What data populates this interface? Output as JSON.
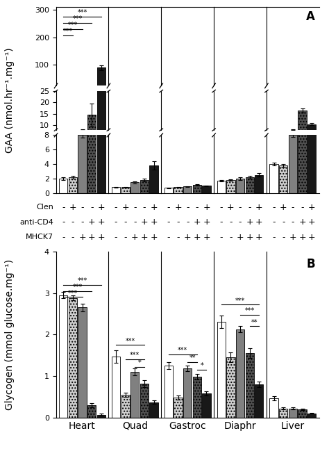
{
  "chart_data": [
    {
      "type": "bar",
      "panel_label": "A",
      "y_label": "GAA (nmol.hr⁻¹.mg⁻¹)",
      "categories": [
        "Heart",
        "Quad",
        "Gastroc",
        "Diaphr",
        "Liver"
      ],
      "tick_labels": "y",
      "segments": [
        {
          "ylim": [
            0,
            8
          ],
          "yticks": [
            0,
            2,
            4,
            6,
            8
          ]
        },
        {
          "ylim": [
            8,
            25
          ],
          "yticks": [
            10,
            15,
            20,
            25
          ]
        },
        {
          "ylim": [
            25,
            310
          ],
          "yticks": [
            100,
            200,
            300
          ]
        }
      ],
      "series": [
        {
          "color": "white",
          "values": [
            2.0,
            0.8,
            0.7,
            1.7,
            4.0
          ],
          "errors": [
            0.15,
            0.08,
            0.05,
            0.12,
            0.2
          ]
        },
        {
          "color": "#d0d0d0",
          "values": [
            2.2,
            0.8,
            0.8,
            1.8,
            3.8
          ],
          "errors": [
            0.2,
            0.08,
            0.05,
            0.12,
            0.2
          ]
        },
        {
          "color": "#808080",
          "values": [
            8.0,
            1.5,
            0.9,
            2.0,
            8.0
          ],
          "errors": [
            0.3,
            0.15,
            0.07,
            0.15,
            0.25
          ]
        },
        {
          "color": "#505050",
          "values": [
            14.5,
            1.8,
            1.1,
            2.2,
            16.5
          ],
          "errors": [
            5.0,
            0.2,
            0.1,
            0.2,
            1.0
          ]
        },
        {
          "color": "#181818",
          "values": [
            90.0,
            3.8,
            1.0,
            2.5,
            10.5
          ],
          "errors": [
            8.0,
            0.6,
            0.07,
            0.25,
            0.6
          ]
        }
      ],
      "annotations": [
        {
          "category": "Heart",
          "from": 0,
          "to": 4,
          "y": 275,
          "text": "***"
        },
        {
          "category": "Heart",
          "from": 0,
          "to": 3,
          "y": 252,
          "text": "***"
        },
        {
          "category": "Heart",
          "from": 0,
          "to": 2,
          "y": 229,
          "text": "***"
        },
        {
          "category": "Heart",
          "from": 0,
          "to": 1,
          "y": 206,
          "text": "***"
        }
      ],
      "conditions": [
        {
          "label": "Clen",
          "signs": [
            "-",
            "+",
            "-",
            "-",
            "+"
          ]
        },
        {
          "label": "anti-CD4",
          "signs": [
            "-",
            "-",
            "-",
            "+",
            "+"
          ]
        },
        {
          "label": "MHCK7",
          "signs": [
            "-",
            "-",
            "+",
            "+",
            "+"
          ]
        }
      ]
    },
    {
      "type": "bar",
      "panel_label": "B",
      "y_label": "Glycogen (mmol glucose.mg⁻¹)",
      "categories": [
        "Heart",
        "Quad",
        "Gastroc",
        "Diaphr",
        "Liver"
      ],
      "ylim": [
        0,
        4
      ],
      "yticks": [
        0,
        1,
        2,
        3,
        4
      ],
      "series": [
        {
          "color": "white",
          "values": [
            2.95,
            1.47,
            1.25,
            2.3,
            0.47
          ],
          "errors": [
            0.07,
            0.15,
            0.08,
            0.15,
            0.05
          ]
        },
        {
          "color": "#d0d0d0",
          "values": [
            2.88,
            0.55,
            0.48,
            1.45,
            0.22
          ],
          "errors": [
            0.06,
            0.05,
            0.05,
            0.12,
            0.02
          ]
        },
        {
          "color": "#808080",
          "values": [
            2.65,
            1.1,
            1.18,
            2.13,
            0.22
          ],
          "errors": [
            0.09,
            0.08,
            0.07,
            0.07,
            0.02
          ]
        },
        {
          "color": "#505050",
          "values": [
            0.3,
            0.82,
            0.98,
            1.55,
            0.2
          ],
          "errors": [
            0.05,
            0.08,
            0.07,
            0.12,
            0.02
          ]
        },
        {
          "color": "#181818",
          "values": [
            0.07,
            0.37,
            0.58,
            0.8,
            0.1
          ],
          "errors": [
            0.02,
            0.04,
            0.05,
            0.07,
            0.01
          ]
        }
      ],
      "annotations": [
        {
          "category": "Heart",
          "from": 0,
          "to": 2,
          "y": 2.9,
          "text": "***"
        },
        {
          "category": "Heart",
          "from": 0,
          "to": 3,
          "y": 3.05,
          "text": "***"
        },
        {
          "category": "Heart",
          "from": 0,
          "to": 4,
          "y": 3.2,
          "text": "***"
        },
        {
          "category": "Quad",
          "from": 0,
          "to": 3,
          "y": 1.75,
          "text": "***"
        },
        {
          "category": "Quad",
          "from": 1,
          "to": 3,
          "y": 1.4,
          "text": "***"
        },
        {
          "category": "Quad",
          "from": 2,
          "to": 3,
          "y": 1.22,
          "text": "*"
        },
        {
          "category": "Gastroc",
          "from": 0,
          "to": 3,
          "y": 1.52,
          "text": "***"
        },
        {
          "category": "Gastroc",
          "from": 2,
          "to": 3,
          "y": 1.34,
          "text": "**"
        },
        {
          "category": "Gastroc",
          "from": 3,
          "to": 4,
          "y": 1.15,
          "text": "*"
        },
        {
          "category": "Diaphr",
          "from": 0,
          "to": 4,
          "y": 2.72,
          "text": "***"
        },
        {
          "category": "Diaphr",
          "from": 2,
          "to": 4,
          "y": 2.47,
          "text": "***"
        },
        {
          "category": "Diaphr",
          "from": 3,
          "to": 4,
          "y": 2.2,
          "text": "**"
        }
      ]
    }
  ]
}
